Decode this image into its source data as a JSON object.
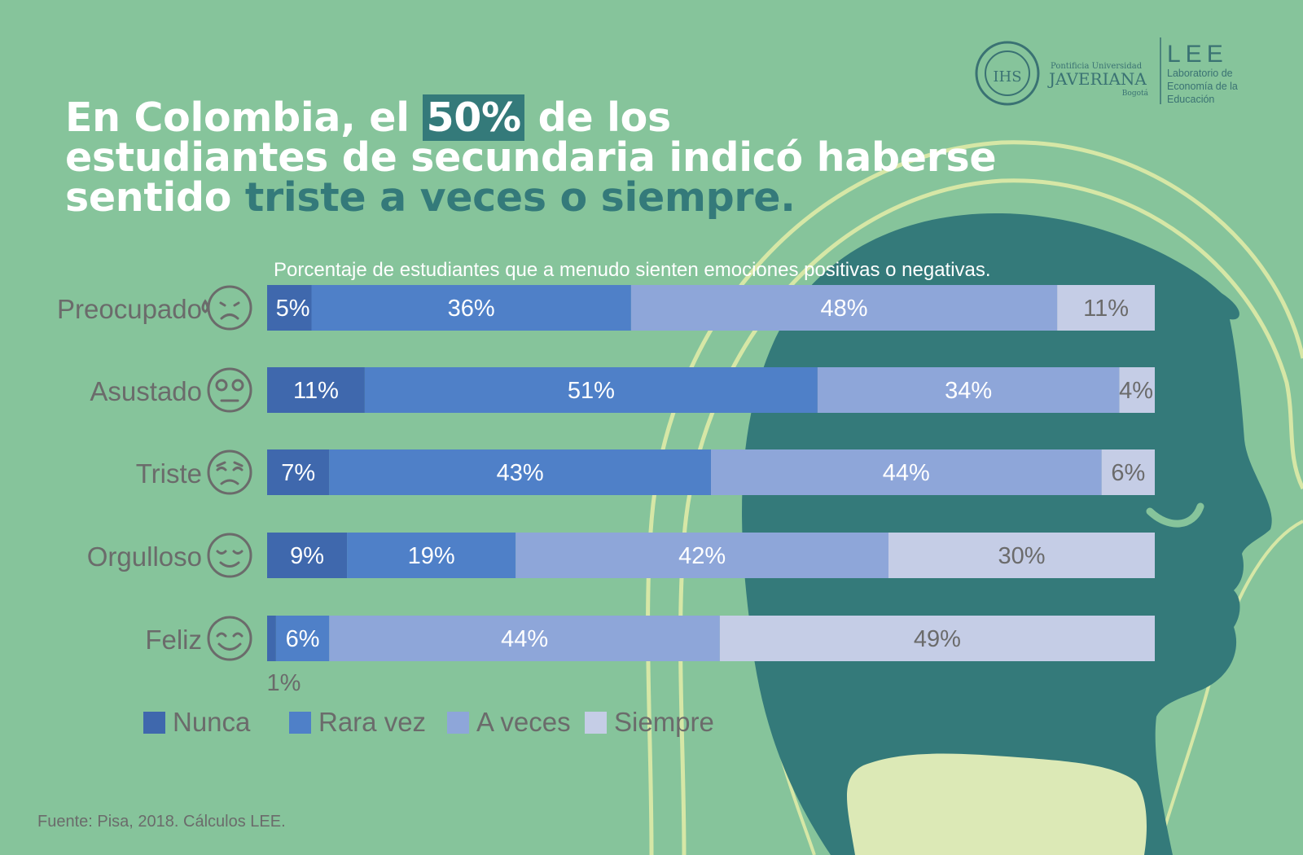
{
  "title": {
    "part1": "En Colombia, el",
    "highlight": "50%",
    "part2": "de los",
    "line2": "estudiantes de secundaria indicó haberse",
    "line3_white": "sentido",
    "line3_dark": "triste a veces o siempre."
  },
  "logos": {
    "javeriana_line1": "Pontificia Universidad",
    "javeriana_line2": "JAVERIANA",
    "javeriana_line3": "Bogotá",
    "seal_text": "IHS",
    "lee_title": "LEE",
    "lee_line1": "Laboratorio de",
    "lee_line2": "Economía de la",
    "lee_line3": "Educación"
  },
  "colors": {
    "background": "#86c49b",
    "head": "#347a7a",
    "outline": "#d6e7a6",
    "nunca": "#3f68ad",
    "rara_vez": "#4f80c8",
    "a_veces": "#8ea6d9",
    "siempre": "#c5cde6"
  },
  "chart_data": {
    "type": "bar",
    "orientation": "horizontal",
    "stacked": true,
    "subtitle": "Porcentaje de estudiantes que a menudo sienten emociones positivas o negativas.",
    "categories": [
      "Preocupado",
      "Asustado",
      "Triste",
      "Orgulloso",
      "Feliz"
    ],
    "category_icons": [
      "worried-face-icon",
      "scared-face-icon",
      "sad-face-icon",
      "proud-face-icon",
      "happy-face-icon"
    ],
    "series": [
      {
        "name": "Nunca",
        "values": [
          5,
          11,
          7,
          9,
          1
        ]
      },
      {
        "name": "Rara vez",
        "values": [
          36,
          51,
          43,
          19,
          6
        ]
      },
      {
        "name": "A veces",
        "values": [
          48,
          34,
          44,
          42,
          44
        ]
      },
      {
        "name": "Siempre",
        "values": [
          11,
          4,
          6,
          30,
          49
        ]
      }
    ],
    "xlim": [
      0,
      100
    ],
    "unit": "%",
    "legend_position": "bottom-left"
  },
  "source": "Fuente: Pisa, 2018. Cálculos LEE."
}
